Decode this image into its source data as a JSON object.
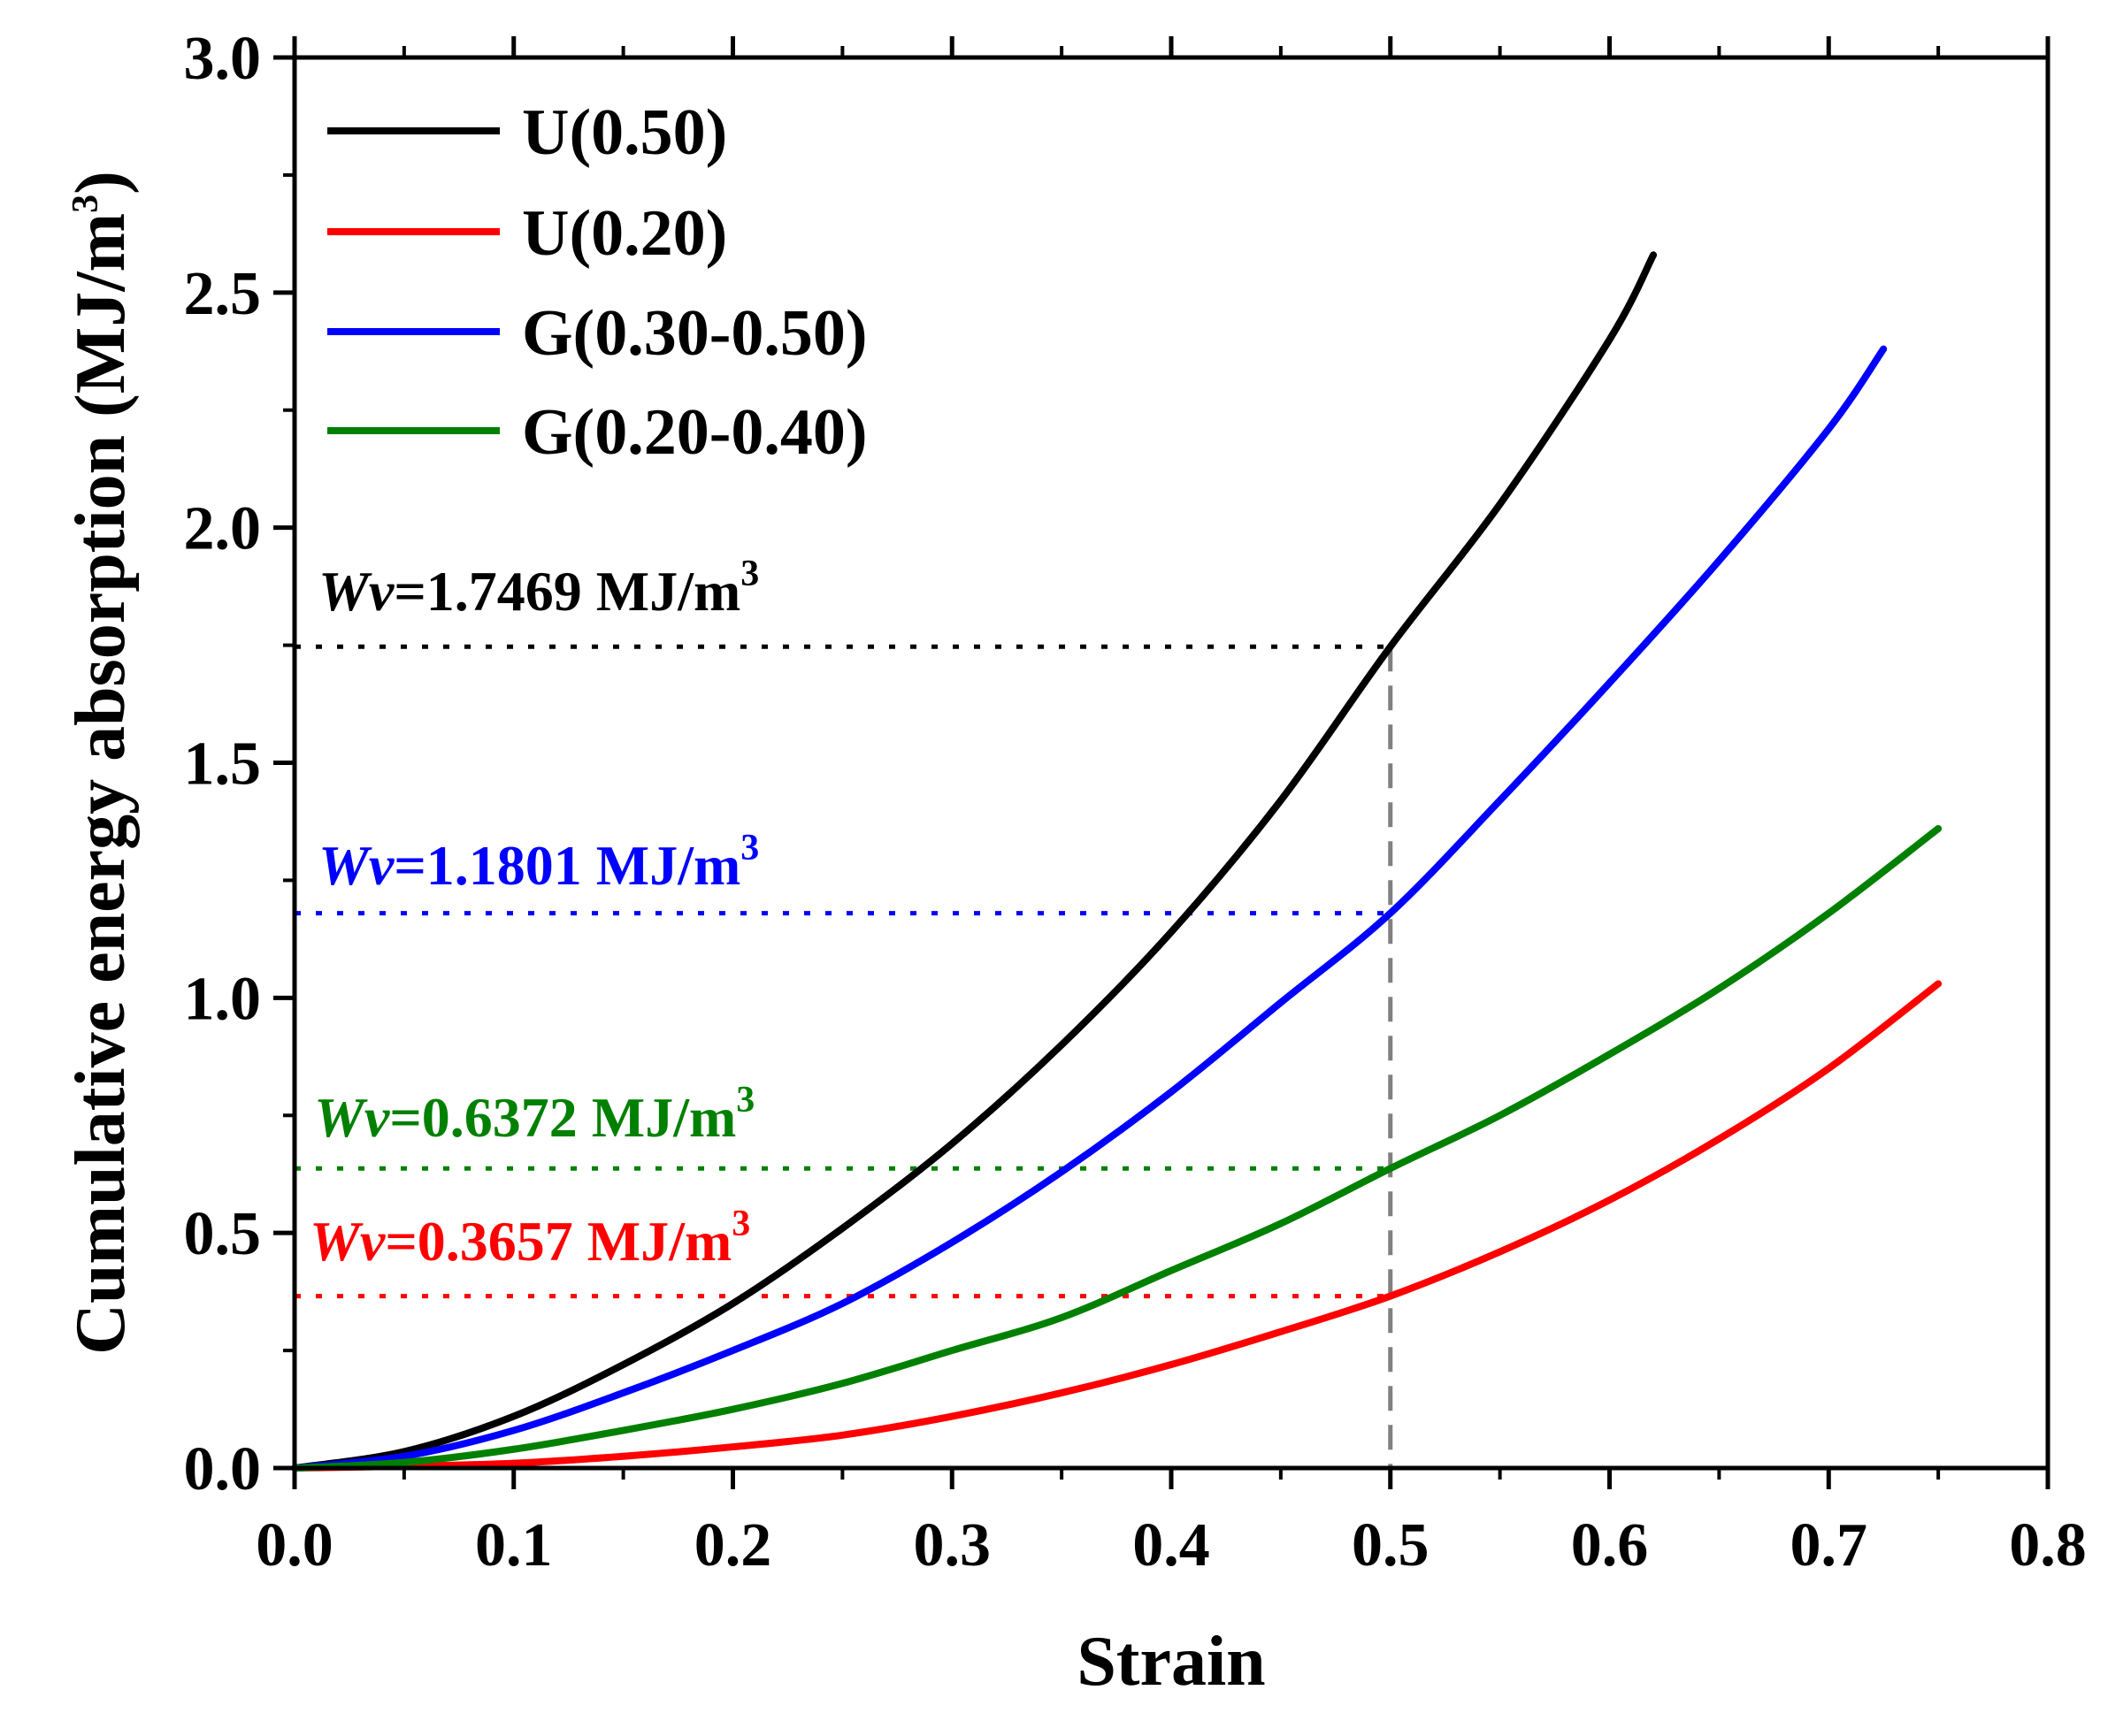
{
  "chart_data": {
    "type": "line",
    "title": "",
    "xlabel": "Strain",
    "ylabel": "Cumulative energy absorption (MJ/m",
    "ylabel_sup": "3",
    "ylabel_close": ")",
    "xlim": [
      0.0,
      0.8
    ],
    "ylim": [
      0.0,
      3.0
    ],
    "xticks": [
      0.0,
      0.1,
      0.2,
      0.3,
      0.4,
      0.5,
      0.6,
      0.7,
      0.8
    ],
    "yticks": [
      0.0,
      0.5,
      1.0,
      1.5,
      2.0,
      2.5,
      3.0
    ],
    "xtick_labels": [
      "0.0",
      "0.1",
      "0.2",
      "0.3",
      "0.4",
      "0.5",
      "0.6",
      "0.7",
      "0.8"
    ],
    "ytick_labels": [
      "0.0",
      "0.5",
      "1.0",
      "1.5",
      "2.0",
      "2.5",
      "3.0"
    ],
    "legend_position": "top-left",
    "grid": false,
    "series": [
      {
        "name": "U(0.50)",
        "color": "#000000",
        "x": [
          0.0,
          0.05,
          0.1,
          0.15,
          0.2,
          0.25,
          0.3,
          0.35,
          0.4,
          0.45,
          0.5,
          0.55,
          0.6,
          0.62
        ],
        "y": [
          0.0,
          0.035,
          0.11,
          0.22,
          0.35,
          0.51,
          0.69,
          0.9,
          1.14,
          1.42,
          1.7469,
          2.05,
          2.4,
          2.58
        ]
      },
      {
        "name": "U(0.20)",
        "color": "#ff0000",
        "x": [
          0.0,
          0.05,
          0.1,
          0.15,
          0.2,
          0.25,
          0.3,
          0.35,
          0.4,
          0.45,
          0.5,
          0.55,
          0.6,
          0.65,
          0.7,
          0.75
        ],
        "y": [
          0.0,
          0.004,
          0.01,
          0.025,
          0.045,
          0.07,
          0.11,
          0.16,
          0.22,
          0.29,
          0.3657,
          0.46,
          0.57,
          0.7,
          0.85,
          1.03
        ]
      },
      {
        "name": "G(0.30-0.50)",
        "color": "#0000ff",
        "x": [
          0.0,
          0.05,
          0.1,
          0.15,
          0.2,
          0.25,
          0.3,
          0.35,
          0.4,
          0.45,
          0.5,
          0.55,
          0.6,
          0.65,
          0.7,
          0.725
        ],
        "y": [
          0.0,
          0.025,
          0.08,
          0.16,
          0.25,
          0.35,
          0.48,
          0.63,
          0.8,
          0.99,
          1.1801,
          1.42,
          1.67,
          1.93,
          2.21,
          2.38
        ]
      },
      {
        "name": "G(0.20-0.40)",
        "color": "#008000",
        "x": [
          0.0,
          0.05,
          0.1,
          0.15,
          0.2,
          0.25,
          0.3,
          0.35,
          0.4,
          0.45,
          0.5,
          0.55,
          0.6,
          0.65,
          0.7,
          0.75
        ],
        "y": [
          0.0,
          0.012,
          0.04,
          0.08,
          0.125,
          0.18,
          0.25,
          0.32,
          0.42,
          0.52,
          0.6372,
          0.75,
          0.88,
          1.02,
          1.18,
          1.36
        ]
      }
    ],
    "reference_lines": [
      {
        "type": "vertical",
        "x": 0.5,
        "color": "#808080",
        "style": "dashed"
      },
      {
        "type": "horizontal",
        "y": 1.7469,
        "color": "#000000",
        "style": "dotted",
        "x_end": 0.5
      },
      {
        "type": "horizontal",
        "y": 1.1801,
        "color": "#0000ff",
        "style": "dotted",
        "x_end": 0.5
      },
      {
        "type": "horizontal",
        "y": 0.6372,
        "color": "#008000",
        "style": "dotted",
        "x_end": 0.5
      },
      {
        "type": "horizontal",
        "y": 0.3657,
        "color": "#ff0000",
        "style": "dotted",
        "x_end": 0.5
      }
    ],
    "annotations": [
      {
        "prefix": "Wv",
        "text": "=1.7469 MJ/m",
        "sup": "3",
        "color": "#000000",
        "y": 1.7469
      },
      {
        "prefix": "Wv",
        "text": "=1.1801 MJ/m",
        "sup": "3",
        "color": "#0000ff",
        "y": 1.1801
      },
      {
        "prefix": "Wv",
        "text": "=0.6372 MJ/m",
        "sup": "3",
        "color": "#008000",
        "y": 0.6372
      },
      {
        "prefix": "Wv",
        "text": "=0.3657 MJ/m",
        "sup": "3",
        "color": "#ff0000",
        "y": 0.3657
      }
    ]
  }
}
